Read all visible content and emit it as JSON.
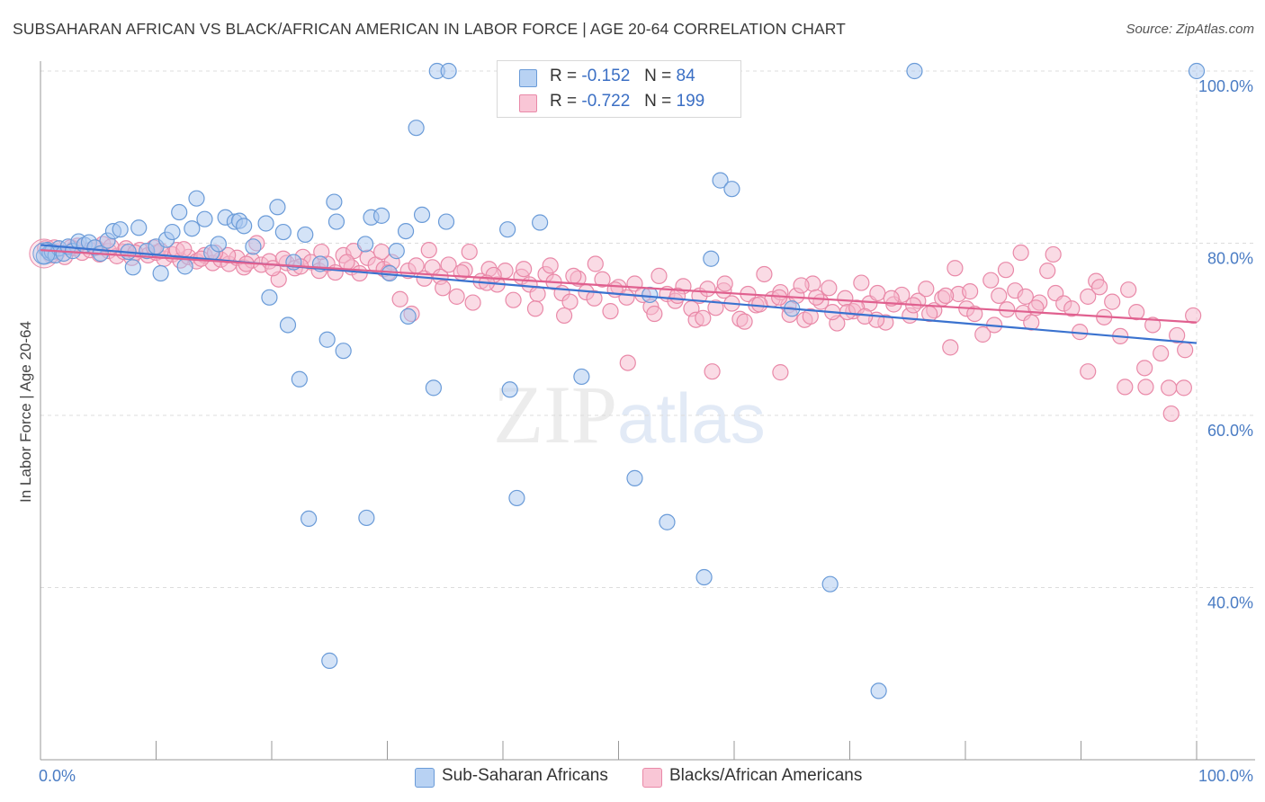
{
  "title": "SUBSAHARAN AFRICAN VS BLACK/AFRICAN AMERICAN IN LABOR FORCE | AGE 20-64 CORRELATION CHART",
  "source": "Source: ZipAtlas.com",
  "watermark": {
    "part1": "ZIP",
    "part2": "atlas"
  },
  "colors": {
    "blue_fill": "#a9c8f0",
    "blue_stroke": "#6a9bd8",
    "blue_line": "#3a72cf",
    "pink_fill": "#f6b8cc",
    "pink_stroke": "#e989a8",
    "pink_line": "#e0608f",
    "tick_text": "#4a7cc4"
  },
  "legend": {
    "rows": [
      {
        "r_label": "R =",
        "r_value": "-0.152",
        "n_label": "N =",
        "n_value": "84"
      },
      {
        "r_label": "R =",
        "r_value": "-0.722",
        "n_label": "N =",
        "n_value": "199"
      }
    ],
    "bottom": [
      "Sub-Saharan Africans",
      "Blacks/African Americans"
    ]
  },
  "chart_data": {
    "type": "scatter",
    "xlabel": "",
    "ylabel": "In Labor Force | Age 20-64",
    "xlim": [
      0,
      100
    ],
    "ylim": [
      20,
      100
    ],
    "x_tick_labels": [
      "0.0%",
      "100.0%"
    ],
    "y_ticks": [
      40,
      60,
      80,
      100
    ],
    "y_tick_labels": [
      "40.0%",
      "60.0%",
      "80.0%",
      "100.0%"
    ],
    "grid": true,
    "legend_position": "top-center",
    "series": [
      {
        "name": "Sub-Saharan Africans",
        "trend": {
          "x": [
            0,
            100
          ],
          "y": [
            79.8,
            68.4
          ]
        },
        "points": [
          [
            0.3,
            78.5
          ],
          [
            0.6,
            79.2
          ],
          [
            0.8,
            78.9
          ],
          [
            1.0,
            79.0
          ],
          [
            1.3,
            78.6
          ],
          [
            1.6,
            79.4
          ],
          [
            2.0,
            78.8
          ],
          [
            2.4,
            79.6
          ],
          [
            2.8,
            79.1
          ],
          [
            3.3,
            80.2
          ],
          [
            3.8,
            79.8
          ],
          [
            4.2,
            80.1
          ],
          [
            4.7,
            79.5
          ],
          [
            5.2,
            78.8
          ],
          [
            5.8,
            80.3
          ],
          [
            6.3,
            81.4
          ],
          [
            6.9,
            81.6
          ],
          [
            7.6,
            79.0
          ],
          [
            8.0,
            77.2
          ],
          [
            8.5,
            81.8
          ],
          [
            9.2,
            79.1
          ],
          [
            10.0,
            79.6
          ],
          [
            10.4,
            76.5
          ],
          [
            10.9,
            80.4
          ],
          [
            11.4,
            81.3
          ],
          [
            12.0,
            83.6
          ],
          [
            12.5,
            77.3
          ],
          [
            13.1,
            81.7
          ],
          [
            13.5,
            85.2
          ],
          [
            14.2,
            82.8
          ],
          [
            14.8,
            78.9
          ],
          [
            15.4,
            79.9
          ],
          [
            16.0,
            83.0
          ],
          [
            16.8,
            82.5
          ],
          [
            17.2,
            82.6
          ],
          [
            17.6,
            82.0
          ],
          [
            18.4,
            79.6
          ],
          [
            19.5,
            82.3
          ],
          [
            19.8,
            73.7
          ],
          [
            20.5,
            84.2
          ],
          [
            21.0,
            81.3
          ],
          [
            21.4,
            70.5
          ],
          [
            21.9,
            77.8
          ],
          [
            22.4,
            64.2
          ],
          [
            22.9,
            81.0
          ],
          [
            23.2,
            48.0
          ],
          [
            24.2,
            77.6
          ],
          [
            24.8,
            68.8
          ],
          [
            25.0,
            31.5
          ],
          [
            25.4,
            84.8
          ],
          [
            25.6,
            82.5
          ],
          [
            26.2,
            67.5
          ],
          [
            28.1,
            79.9
          ],
          [
            28.2,
            48.1
          ],
          [
            28.6,
            83.0
          ],
          [
            29.5,
            83.2
          ],
          [
            30.2,
            76.5
          ],
          [
            30.8,
            79.1
          ],
          [
            31.6,
            81.4
          ],
          [
            31.8,
            71.5
          ],
          [
            32.5,
            93.4
          ],
          [
            33.0,
            83.3
          ],
          [
            34.0,
            63.2
          ],
          [
            34.3,
            100.0
          ],
          [
            35.1,
            82.5
          ],
          [
            35.3,
            100.0
          ],
          [
            40.4,
            81.6
          ],
          [
            40.6,
            63.0
          ],
          [
            41.2,
            50.4
          ],
          [
            43.2,
            82.4
          ],
          [
            46.8,
            64.5
          ],
          [
            51.4,
            52.7
          ],
          [
            52.5,
            100.0
          ],
          [
            52.7,
            74.0
          ],
          [
            54.2,
            47.6
          ],
          [
            57.4,
            41.2
          ],
          [
            58.0,
            78.2
          ],
          [
            58.8,
            87.3
          ],
          [
            59.8,
            86.3
          ],
          [
            65.0,
            72.4
          ],
          [
            68.3,
            40.4
          ],
          [
            72.5,
            28.0
          ],
          [
            75.6,
            100.0
          ],
          [
            100.0,
            100.0
          ]
        ]
      },
      {
        "name": "Blacks/African Americans",
        "trend": {
          "x": [
            0,
            100
          ],
          "y": [
            79.2,
            70.8
          ]
        },
        "points": [
          [
            0.4,
            79.4
          ],
          [
            0.9,
            78.6
          ],
          [
            1.5,
            79.0
          ],
          [
            2.1,
            78.4
          ],
          [
            2.9,
            79.4
          ],
          [
            3.6,
            78.9
          ],
          [
            4.3,
            79.2
          ],
          [
            5.1,
            78.7
          ],
          [
            5.9,
            79.1
          ],
          [
            6.6,
            78.5
          ],
          [
            7.2,
            79.0
          ],
          [
            7.9,
            78.3
          ],
          [
            8.6,
            79.2
          ],
          [
            9.3,
            78.6
          ],
          [
            10.0,
            78.9
          ],
          [
            10.7,
            78.2
          ],
          [
            11.4,
            78.7
          ],
          [
            12.1,
            78.0
          ],
          [
            12.8,
            78.4
          ],
          [
            13.5,
            77.9
          ],
          [
            14.2,
            78.6
          ],
          [
            14.9,
            77.7
          ],
          [
            15.6,
            78.1
          ],
          [
            16.3,
            77.6
          ],
          [
            17.0,
            78.3
          ],
          [
            17.6,
            77.2
          ],
          [
            18.3,
            78.0
          ],
          [
            19.1,
            77.5
          ],
          [
            19.8,
            77.9
          ],
          [
            20.6,
            75.8
          ],
          [
            21.3,
            77.7
          ],
          [
            22.0,
            77.1
          ],
          [
            22.7,
            78.4
          ],
          [
            23.4,
            77.8
          ],
          [
            24.1,
            76.8
          ],
          [
            24.8,
            77.6
          ],
          [
            25.5,
            76.6
          ],
          [
            26.2,
            78.6
          ],
          [
            26.9,
            77.2
          ],
          [
            27.6,
            76.5
          ],
          [
            28.3,
            78.3
          ],
          [
            29.0,
            77.5
          ],
          [
            29.7,
            77.0
          ],
          [
            30.4,
            77.8
          ],
          [
            31.1,
            73.5
          ],
          [
            31.8,
            76.8
          ],
          [
            32.5,
            77.4
          ],
          [
            33.2,
            75.9
          ],
          [
            33.9,
            77.2
          ],
          [
            34.6,
            76.1
          ],
          [
            35.3,
            77.5
          ],
          [
            36.0,
            73.8
          ],
          [
            36.7,
            76.9
          ],
          [
            37.4,
            73.1
          ],
          [
            38.1,
            75.6
          ],
          [
            38.8,
            77.0
          ],
          [
            39.5,
            75.2
          ],
          [
            40.2,
            76.8
          ],
          [
            40.9,
            73.4
          ],
          [
            41.6,
            76.1
          ],
          [
            42.3,
            75.2
          ],
          [
            43.0,
            74.1
          ],
          [
            43.7,
            76.4
          ],
          [
            44.4,
            75.5
          ],
          [
            45.1,
            74.2
          ],
          [
            45.8,
            73.2
          ],
          [
            46.5,
            75.9
          ],
          [
            47.2,
            74.3
          ],
          [
            47.9,
            73.6
          ],
          [
            48.6,
            75.8
          ],
          [
            49.3,
            72.1
          ],
          [
            50.0,
            74.9
          ],
          [
            50.7,
            73.7
          ],
          [
            51.4,
            75.3
          ],
          [
            52.1,
            74.0
          ],
          [
            52.8,
            72.6
          ],
          [
            53.5,
            76.2
          ],
          [
            54.2,
            74.1
          ],
          [
            54.9,
            73.3
          ],
          [
            55.6,
            75.0
          ],
          [
            56.3,
            72.4
          ],
          [
            57.0,
            73.9
          ],
          [
            57.7,
            74.7
          ],
          [
            58.4,
            72.5
          ],
          [
            59.1,
            74.5
          ],
          [
            59.8,
            73.0
          ],
          [
            60.5,
            71.2
          ],
          [
            61.2,
            74.1
          ],
          [
            61.9,
            72.8
          ],
          [
            62.6,
            76.4
          ],
          [
            63.3,
            73.5
          ],
          [
            64.0,
            74.3
          ],
          [
            64.7,
            72.8
          ],
          [
            65.4,
            73.9
          ],
          [
            66.1,
            71.1
          ],
          [
            66.8,
            75.3
          ],
          [
            67.5,
            73.2
          ],
          [
            68.2,
            74.8
          ],
          [
            68.9,
            70.7
          ],
          [
            69.6,
            73.6
          ],
          [
            70.3,
            72.1
          ],
          [
            71.0,
            75.4
          ],
          [
            71.7,
            73.0
          ],
          [
            72.4,
            74.2
          ],
          [
            73.1,
            70.8
          ],
          [
            73.8,
            72.9
          ],
          [
            74.5,
            74.0
          ],
          [
            75.2,
            71.6
          ],
          [
            75.9,
            73.3
          ],
          [
            76.6,
            74.7
          ],
          [
            77.3,
            72.2
          ],
          [
            78.0,
            73.6
          ],
          [
            78.7,
            67.9
          ],
          [
            79.4,
            74.1
          ],
          [
            80.1,
            72.4
          ],
          [
            80.8,
            71.8
          ],
          [
            81.5,
            69.4
          ],
          [
            82.2,
            75.7
          ],
          [
            82.9,
            73.9
          ],
          [
            83.6,
            72.3
          ],
          [
            84.3,
            74.5
          ],
          [
            85.0,
            71.9
          ],
          [
            85.7,
            70.8
          ],
          [
            86.4,
            73.1
          ],
          [
            87.1,
            76.8
          ],
          [
            87.8,
            74.2
          ],
          [
            88.5,
            73.0
          ],
          [
            89.2,
            72.4
          ],
          [
            89.9,
            69.7
          ],
          [
            90.6,
            73.8
          ],
          [
            91.3,
            75.6
          ],
          [
            92.0,
            71.4
          ],
          [
            92.7,
            73.2
          ],
          [
            93.4,
            69.2
          ],
          [
            94.1,
            74.6
          ],
          [
            94.8,
            72.0
          ],
          [
            95.5,
            65.5
          ],
          [
            96.2,
            70.5
          ],
          [
            96.9,
            67.2
          ],
          [
            97.6,
            63.2
          ],
          [
            98.3,
            69.3
          ],
          [
            99.0,
            67.6
          ],
          [
            99.7,
            71.6
          ],
          [
            64.0,
            65.0
          ],
          [
            50.8,
            66.1
          ],
          [
            58.1,
            65.1
          ],
          [
            90.6,
            65.1
          ],
          [
            87.6,
            78.7
          ],
          [
            84.8,
            78.9
          ],
          [
            91.6,
            74.9
          ],
          [
            93.8,
            63.3
          ],
          [
            95.6,
            63.3
          ],
          [
            97.8,
            60.2
          ],
          [
            98.9,
            63.2
          ],
          [
            72.3,
            71.1
          ],
          [
            83.5,
            76.9
          ],
          [
            76.9,
            71.8
          ],
          [
            79.1,
            77.1
          ],
          [
            64.8,
            71.7
          ],
          [
            56.7,
            71.1
          ],
          [
            66.6,
            71.5
          ],
          [
            59.2,
            75.3
          ],
          [
            69.8,
            72.0
          ],
          [
            45.3,
            71.6
          ],
          [
            48.0,
            77.6
          ],
          [
            44.1,
            77.4
          ],
          [
            41.8,
            77.0
          ],
          [
            39.2,
            76.3
          ],
          [
            37.1,
            79.0
          ],
          [
            33.6,
            79.2
          ],
          [
            29.5,
            79.0
          ],
          [
            27.1,
            79.1
          ],
          [
            24.3,
            79.0
          ],
          [
            21.0,
            78.2
          ],
          [
            18.7,
            80.0
          ],
          [
            16.2,
            78.6
          ],
          [
            13.9,
            78.2
          ],
          [
            11.8,
            79.2
          ],
          [
            9.8,
            79.5
          ],
          [
            7.4,
            79.4
          ],
          [
            5.4,
            79.9
          ],
          [
            3.2,
            79.7
          ],
          [
            1.2,
            79.5
          ],
          [
            2.6,
            79.5
          ],
          [
            4.8,
            79.5
          ],
          [
            6.1,
            79.6
          ],
          [
            8.2,
            78.9
          ],
          [
            10.4,
            79.1
          ],
          [
            12.4,
            79.3
          ],
          [
            15.1,
            78.9
          ],
          [
            17.8,
            77.6
          ],
          [
            20.1,
            77.1
          ],
          [
            22.5,
            77.3
          ],
          [
            26.5,
            77.8
          ],
          [
            30.1,
            76.6
          ],
          [
            32.1,
            71.8
          ],
          [
            34.8,
            74.8
          ],
          [
            36.4,
            76.6
          ],
          [
            38.6,
            75.4
          ],
          [
            42.8,
            72.4
          ],
          [
            46.1,
            76.2
          ],
          [
            49.7,
            74.6
          ],
          [
            53.1,
            71.8
          ],
          [
            55.1,
            73.9
          ],
          [
            57.3,
            71.3
          ],
          [
            60.9,
            70.9
          ],
          [
            62.2,
            72.9
          ],
          [
            63.9,
            73.7
          ],
          [
            65.8,
            75.1
          ],
          [
            67.1,
            73.7
          ],
          [
            68.5,
            72.0
          ],
          [
            70.6,
            72.5
          ],
          [
            71.3,
            71.5
          ],
          [
            73.6,
            73.6
          ],
          [
            75.5,
            72.8
          ],
          [
            78.3,
            73.9
          ],
          [
            80.4,
            74.4
          ],
          [
            82.5,
            70.5
          ],
          [
            85.2,
            73.8
          ],
          [
            86.1,
            72.5
          ]
        ]
      }
    ]
  }
}
